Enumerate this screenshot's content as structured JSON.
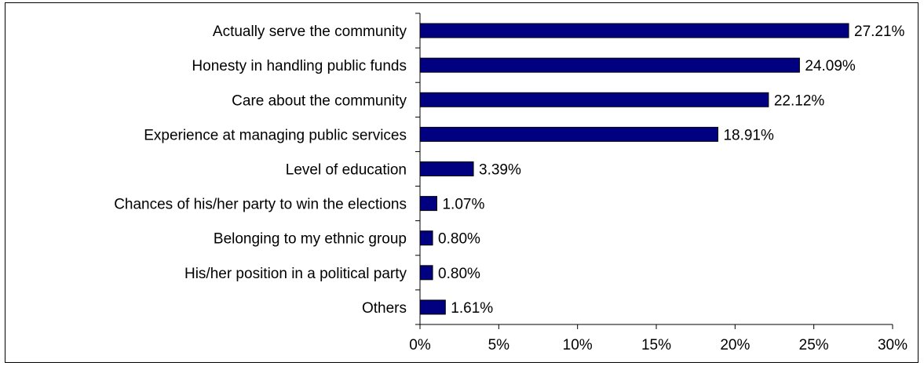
{
  "chart_data": {
    "type": "bar",
    "orientation": "horizontal",
    "categories": [
      "Actually serve the community",
      "Honesty in handling public funds",
      "Care about the community",
      "Experience at managing public services",
      "Level of education",
      "Chances of his/her party to win the elections",
      "Belonging to my ethnic group",
      "His/her position in a political party",
      "Others"
    ],
    "values": [
      27.21,
      24.09,
      22.12,
      18.91,
      3.39,
      1.07,
      0.8,
      0.8,
      1.61
    ],
    "value_labels": [
      "27.21%",
      "24.09%",
      "22.12%",
      "18.91%",
      "3.39%",
      "1.07%",
      "0.80%",
      "0.80%",
      "1.61%"
    ],
    "xlim": [
      0,
      30
    ],
    "xticks": [
      0,
      5,
      10,
      15,
      20,
      25,
      30
    ],
    "xtick_labels": [
      "0%",
      "5%",
      "10%",
      "15%",
      "20%",
      "25%",
      "30%"
    ],
    "title": "",
    "xlabel": "",
    "ylabel": "",
    "grid": false,
    "legend": "none",
    "bar_color": "#000080"
  }
}
